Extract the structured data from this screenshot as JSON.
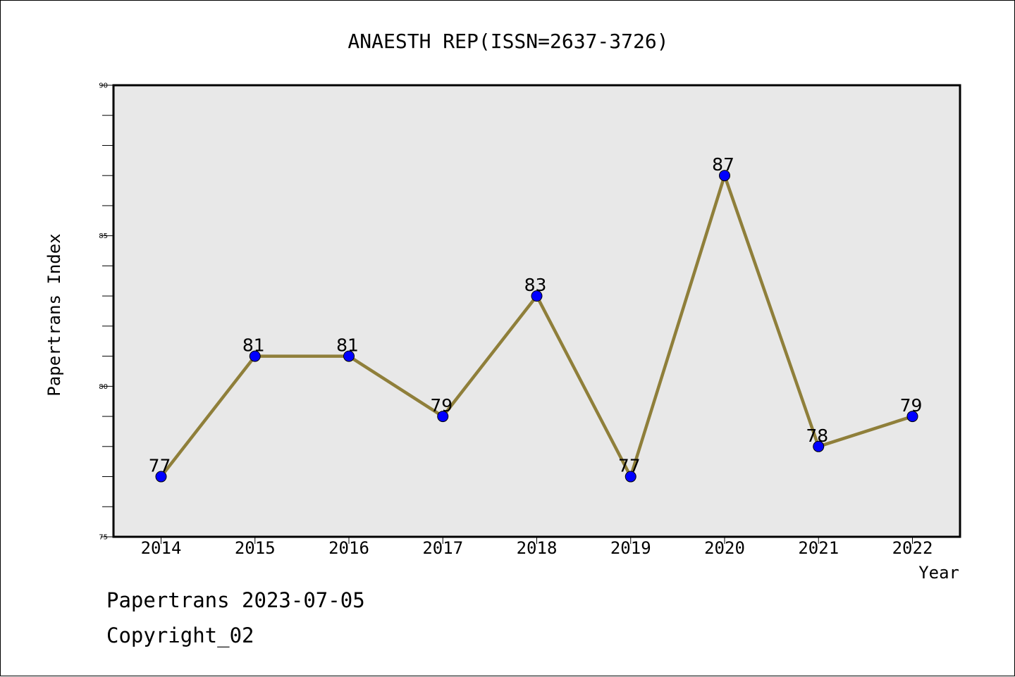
{
  "chart_data": {
    "type": "line",
    "title": "ANAESTH REP(ISSN=2637-3726)",
    "xlabel": "Year",
    "ylabel": "Papertrans Index",
    "categories": [
      "2014",
      "2015",
      "2016",
      "2017",
      "2018",
      "2019",
      "2020",
      "2021",
      "2022"
    ],
    "series": [
      {
        "values": [
          77,
          81,
          81,
          79,
          83,
          77,
          87,
          78,
          79
        ]
      }
    ],
    "ylim": [
      75,
      90
    ],
    "yticks": [
      "75",
      "80",
      "85",
      "90"
    ],
    "grid": false,
    "line_color": "#8f7f3a",
    "marker_color": "#0000ff",
    "plot_background": "#e8e8e8"
  },
  "footer": {
    "line1": "Papertrans 2023-07-05",
    "line2": "Copyright_02"
  }
}
